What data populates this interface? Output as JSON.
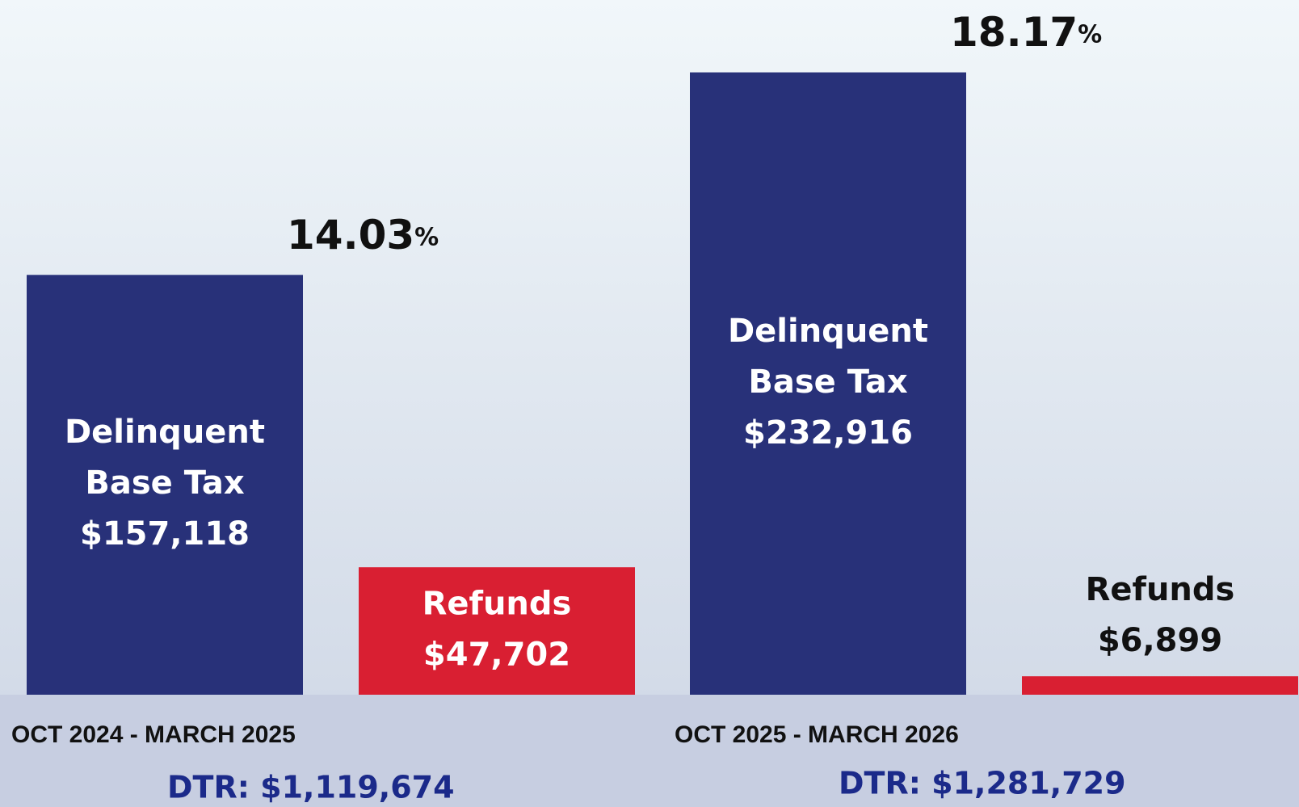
{
  "chart_data": {
    "type": "bar",
    "categories": [
      "OCT 2024 - MARCH 2025",
      "OCT 2025 - MARCH 2026"
    ],
    "series": [
      {
        "name": "Delinquent Base Tax",
        "color": "#283179",
        "values": [
          157118,
          232916
        ],
        "value_labels": [
          "$157,118",
          "$232,916"
        ]
      },
      {
        "name": "Refunds",
        "color": "#d91f32",
        "values": [
          47702,
          6899
        ],
        "value_labels": [
          "$47,702",
          "$6,899"
        ]
      }
    ],
    "annotations": [
      "14.03%",
      "18.17%"
    ],
    "dtr_labels": [
      "DTR: $1,119,674",
      "DTR: $1,281,729"
    ],
    "ylim": [
      0,
      260000
    ]
  }
}
